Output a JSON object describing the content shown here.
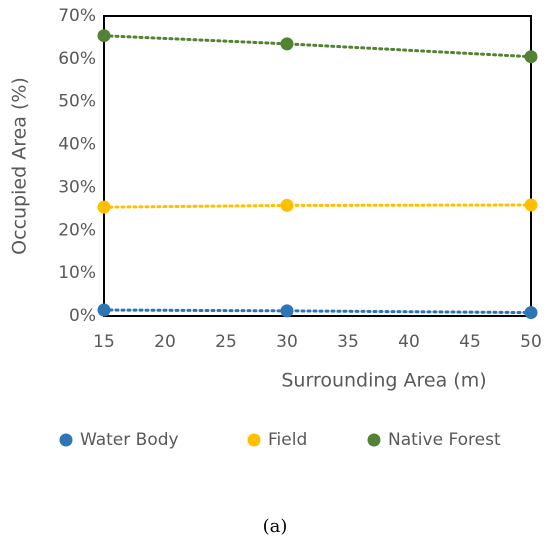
{
  "chart_data": {
    "type": "scatter",
    "x": [
      15,
      30,
      50
    ],
    "series": [
      {
        "name": "Water Body",
        "color": "#2e75b6",
        "values": [
          1.4,
          1.2,
          0.8
        ]
      },
      {
        "name": "Field",
        "color": "#ffc000",
        "values": [
          25.4,
          25.8,
          25.9
        ]
      },
      {
        "name": "Native Forest",
        "color": "#548235",
        "values": [
          65.4,
          63.5,
          60.5
        ]
      }
    ],
    "x_label": "Surrounding Area (m)",
    "y_label": "Occupied Area  (%)",
    "xlim": [
      15,
      50
    ],
    "xticks": [
      15,
      20,
      25,
      30,
      35,
      40,
      45,
      50
    ],
    "ylim": [
      0,
      70
    ],
    "yticks": [
      {
        "value": 0,
        "label": "0%"
      },
      {
        "value": 10,
        "label": "10%"
      },
      {
        "value": 20,
        "label": "20%"
      },
      {
        "value": 30,
        "label": "30%"
      },
      {
        "value": 40,
        "label": "40%"
      },
      {
        "value": 50,
        "label": "50%"
      },
      {
        "value": 60,
        "label": "60%"
      },
      {
        "value": 70,
        "label": "70%"
      }
    ],
    "grid": false,
    "trendline": "dotted",
    "legend": "bottom",
    "caption": "(a)"
  }
}
